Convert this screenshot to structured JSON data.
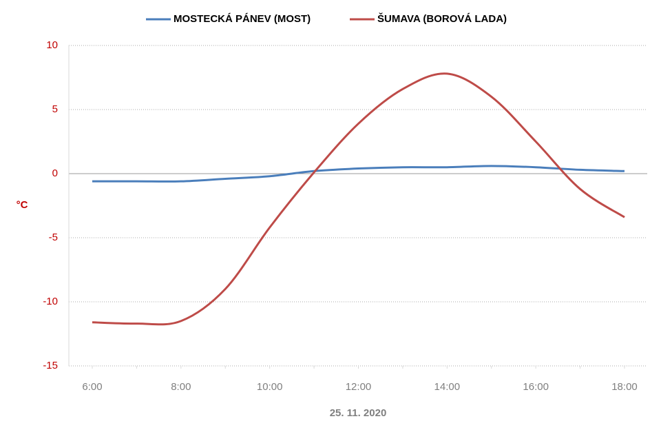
{
  "chart_data": {
    "type": "line",
    "categories": [
      "6:00",
      null,
      "8:00",
      null,
      "10:00",
      null,
      "12:00",
      null,
      "14:00",
      null,
      "16:00",
      null,
      "18:00"
    ],
    "series": [
      {
        "name": "MOSTECKÁ PÁNEV (MOST)",
        "color": "#4a7ebb",
        "values": [
          -0.6,
          -0.6,
          -0.6,
          -0.4,
          -0.2,
          0.2,
          0.4,
          0.5,
          0.5,
          0.6,
          0.5,
          0.3,
          0.2
        ]
      },
      {
        "name": "ŠUMAVA (BOROVÁ LADA)",
        "color": "#be4b48",
        "values": [
          -11.6,
          -11.7,
          -11.5,
          -9.0,
          -4.2,
          0.1,
          3.9,
          6.6,
          7.8,
          6.0,
          2.5,
          -1.2,
          -3.4
        ]
      }
    ],
    "ylabel": "°C",
    "xlabel": "25. 11. 2020",
    "ylim": [
      -15,
      10
    ],
    "yticks": [
      -15,
      -10,
      -5,
      0,
      5,
      10
    ],
    "grid": true,
    "legend": "top"
  }
}
